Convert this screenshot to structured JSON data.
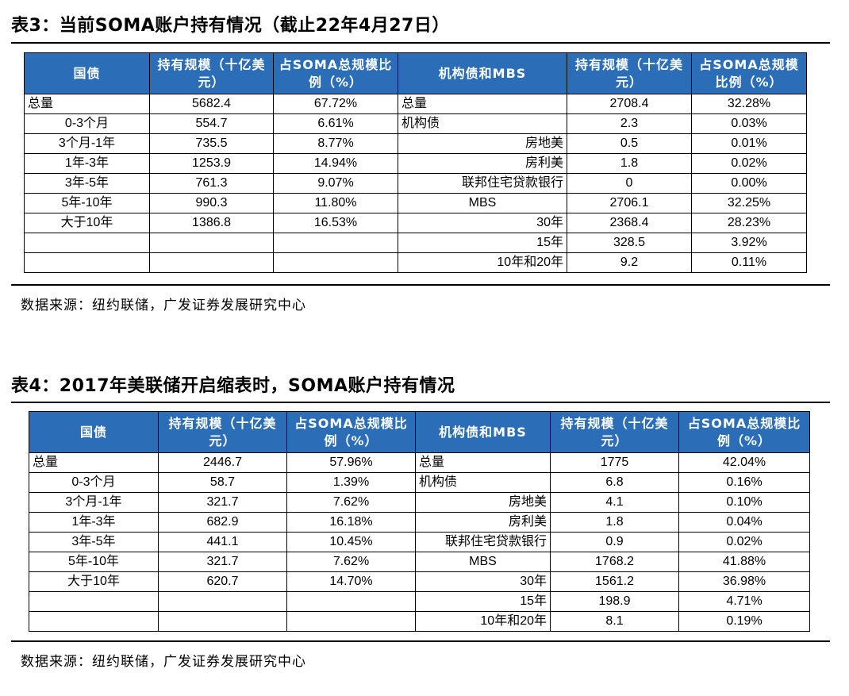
{
  "table3": {
    "title": "表3：当前SOMA账户持有情况（截止22年4月27日）",
    "headers": [
      "国债",
      "持有规模（十亿美元）",
      "占SOMA总规模比例（%）",
      "机构债和MBS",
      "持有规模（十亿美元）",
      "占SOMA总规模比例（%）"
    ],
    "rows": [
      [
        "总量",
        "5682.4",
        "67.72%",
        "总量",
        "2708.4",
        "32.28%"
      ],
      [
        "0-3个月",
        "554.7",
        "6.61%",
        "机构债",
        "2.3",
        "0.03%"
      ],
      [
        "3个月-1年",
        "735.5",
        "8.77%",
        "房地美",
        "0.5",
        "0.01%"
      ],
      [
        "1年-3年",
        "1253.9",
        "14.94%",
        "房利美",
        "1.8",
        "0.02%"
      ],
      [
        "3年-5年",
        "761.3",
        "9.07%",
        "联邦住宅贷款银行",
        "0",
        "0.00%"
      ],
      [
        "5年-10年",
        "990.3",
        "11.80%",
        "MBS",
        "2706.1",
        "32.25%"
      ],
      [
        "大于10年",
        "1386.8",
        "16.53%",
        "30年",
        "2368.4",
        "28.23%"
      ],
      [
        "",
        "",
        "",
        "15年",
        "328.5",
        "3.92%"
      ],
      [
        "",
        "",
        "",
        "10年和20年",
        "9.2",
        "0.11%"
      ]
    ],
    "source": "数据来源：纽约联储，广发证券发展研究中心"
  },
  "table4": {
    "title": "表4：2017年美联储开启缩表时，SOMA账户持有情况",
    "headers": [
      "国债",
      "持有规模（十亿美元）",
      "占SOMA总规模比例（%）",
      "机构债和MBS",
      "持有规模（十亿美元）",
      "占SOMA总规模比例（%）"
    ],
    "rows": [
      [
        "总量",
        "2446.7",
        "57.96%",
        "总量",
        "1775",
        "42.04%"
      ],
      [
        "0-3个月",
        "58.7",
        "1.39%",
        "机构债",
        "6.8",
        "0.16%"
      ],
      [
        "3个月-1年",
        "321.7",
        "7.62%",
        "房地美",
        "4.1",
        "0.10%"
      ],
      [
        "1年-3年",
        "682.9",
        "16.18%",
        "房利美",
        "1.8",
        "0.04%"
      ],
      [
        "3年-5年",
        "441.1",
        "10.45%",
        "联邦住宅贷款银行",
        "0.9",
        "0.02%"
      ],
      [
        "5年-10年",
        "321.7",
        "7.62%",
        "MBS",
        "1768.2",
        "41.88%"
      ],
      [
        "大于10年",
        "620.7",
        "14.70%",
        "30年",
        "1561.2",
        "36.98%"
      ],
      [
        "",
        "",
        "",
        "15年",
        "198.9",
        "4.71%"
      ],
      [
        "",
        "",
        "",
        "10年和20年",
        "8.1",
        "0.19%"
      ]
    ],
    "source": "数据来源：纽约联储，广发证券发展研究中心"
  }
}
